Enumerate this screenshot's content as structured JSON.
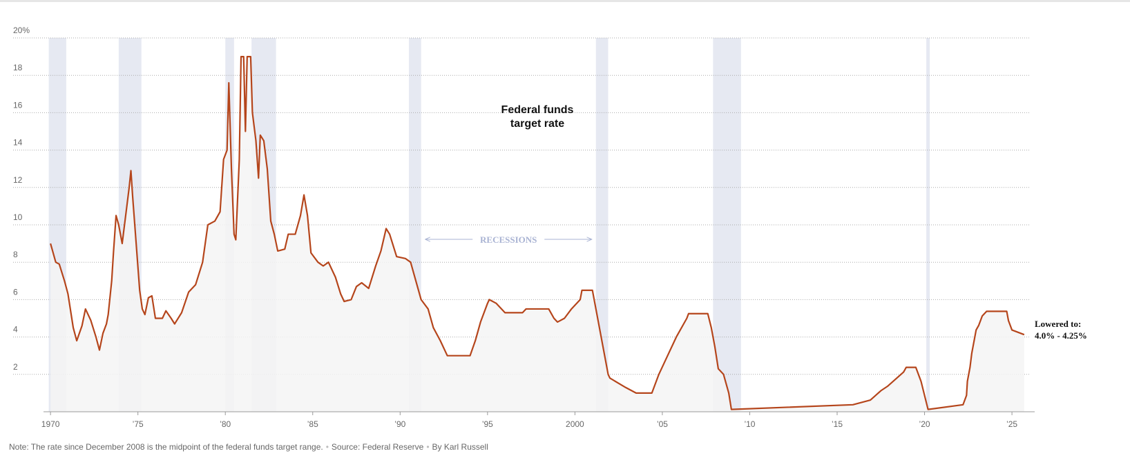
{
  "chart_data": {
    "type": "line",
    "title": "Federal funds target rate",
    "end_annotation": [
      "Lowered to:",
      "4.0% - 4.25%"
    ],
    "recession_label": "RECESSIONS",
    "note": "Note: The rate since December 2008 is the midpoint of the federal funds target range.",
    "source": "Source: Federal Reserve",
    "byline": "By Karl Russell",
    "color": "#b5451b",
    "area_color": "#f4f4f4",
    "recession_color": "#e6e9f2",
    "grid": true,
    "xlim": [
      1969.6,
      2026.3
    ],
    "ylim": [
      0,
      20
    ],
    "yticks": [
      2,
      4,
      6,
      8,
      10,
      12,
      14,
      16,
      18,
      {
        "value": 20,
        "label": "20%"
      }
    ],
    "xticks": [
      {
        "value": 1970,
        "label": "1970"
      },
      {
        "value": 1975,
        "label": "’75"
      },
      {
        "value": 1980,
        "label": "’80"
      },
      {
        "value": 1985,
        "label": "’85"
      },
      {
        "value": 1990,
        "label": "’90"
      },
      {
        "value": 1995,
        "label": "’95"
      },
      {
        "value": 2000,
        "label": "2000"
      },
      {
        "value": 2005,
        "label": "’05"
      },
      {
        "value": 2010,
        "label": "’10"
      },
      {
        "value": 2015,
        "label": "’15"
      },
      {
        "value": 2020,
        "label": "’20"
      },
      {
        "value": 2025,
        "label": "’25"
      }
    ],
    "recessions": [
      {
        "start": 1969.9,
        "end": 1970.9
      },
      {
        "start": 1973.9,
        "end": 1975.2
      },
      {
        "start": 1980.0,
        "end": 1980.5
      },
      {
        "start": 1981.5,
        "end": 1982.9
      },
      {
        "start": 1990.5,
        "end": 1991.2
      },
      {
        "start": 2001.2,
        "end": 2001.9
      },
      {
        "start": 2007.9,
        "end": 2009.5
      },
      {
        "start": 2020.1,
        "end": 2020.3
      }
    ],
    "x": [
      1970.0,
      1970.3,
      1970.5,
      1970.8,
      1971.0,
      1971.3,
      1971.5,
      1971.8,
      1972.0,
      1972.3,
      1972.6,
      1972.8,
      1973.0,
      1973.2,
      1973.3,
      1973.5,
      1973.6,
      1973.75,
      1973.9,
      1974.1,
      1974.3,
      1974.5,
      1974.6,
      1974.7,
      1974.9,
      1975.1,
      1975.25,
      1975.4,
      1975.6,
      1975.8,
      1976.0,
      1976.4,
      1976.6,
      1976.9,
      1977.1,
      1977.5,
      1977.9,
      1978.3,
      1978.7,
      1979.0,
      1979.4,
      1979.7,
      1979.9,
      1980.1,
      1980.2,
      1980.35,
      1980.5,
      1980.6,
      1980.8,
      1980.9,
      1981.05,
      1981.15,
      1981.25,
      1981.45,
      1981.55,
      1981.75,
      1981.9,
      1982.0,
      1982.2,
      1982.4,
      1982.6,
      1982.8,
      1983.0,
      1983.4,
      1983.6,
      1984.0,
      1984.3,
      1984.5,
      1984.7,
      1984.9,
      1985.3,
      1985.6,
      1985.9,
      1986.3,
      1986.6,
      1986.8,
      1987.2,
      1987.5,
      1987.8,
      1988.2,
      1988.6,
      1988.9,
      1989.2,
      1989.4,
      1989.8,
      1990.3,
      1990.6,
      1990.9,
      1991.2,
      1991.6,
      1991.9,
      1992.3,
      1992.7,
      1993.0,
      1994.0,
      1994.3,
      1994.6,
      1995.0,
      1995.1,
      1995.5,
      1996.0,
      1997.0,
      1997.2,
      1998.5,
      1998.8,
      1999.0,
      1999.4,
      1999.8,
      2000.3,
      2000.4,
      2001.0,
      2001.2,
      2001.5,
      2001.7,
      2001.9,
      2002.0,
      2002.9,
      2003.5,
      2004.4,
      2004.8,
      2005.3,
      2005.8,
      2006.4,
      2006.5,
      2007.6,
      2007.8,
      2008.0,
      2008.2,
      2008.5,
      2008.8,
      2008.95,
      2015.9,
      2016.9,
      2017.2,
      2017.5,
      2017.9,
      2018.2,
      2018.5,
      2018.8,
      2018.95,
      2019.5,
      2019.6,
      2019.7,
      2019.8,
      2020.2,
      2022.2,
      2022.4,
      2022.45,
      2022.6,
      2022.7,
      2022.85,
      2022.95,
      2023.1,
      2023.2,
      2023.3,
      2023.55,
      2024.7,
      2024.8,
      2024.9,
      2025.0,
      2025.7
    ],
    "values": [
      9.0,
      8.0,
      7.9,
      7.0,
      6.3,
      4.5,
      3.8,
      4.6,
      5.5,
      4.9,
      4.0,
      3.3,
      4.2,
      4.7,
      5.2,
      7.0,
      8.5,
      10.5,
      10.0,
      9.0,
      10.5,
      12.0,
      12.9,
      11.5,
      9.0,
      6.5,
      5.5,
      5.2,
      6.1,
      6.2,
      5.0,
      5.0,
      5.4,
      5.0,
      4.7,
      5.3,
      6.4,
      6.8,
      8.0,
      10.0,
      10.2,
      10.7,
      13.5,
      14.0,
      17.6,
      13.0,
      9.5,
      9.2,
      13.5,
      19.0,
      19.0,
      15.0,
      19.0,
      19.0,
      16.0,
      14.5,
      12.5,
      14.8,
      14.5,
      13.0,
      10.2,
      9.5,
      8.6,
      8.7,
      9.5,
      9.5,
      10.5,
      11.6,
      10.5,
      8.5,
      8.0,
      7.8,
      8.0,
      7.2,
      6.3,
      5.9,
      6.0,
      6.7,
      6.9,
      6.6,
      7.8,
      8.6,
      9.8,
      9.5,
      8.3,
      8.2,
      8.0,
      7.0,
      6.0,
      5.5,
      4.5,
      3.8,
      3.0,
      3.0,
      3.0,
      3.8,
      4.8,
      5.8,
      6.0,
      5.8,
      5.3,
      5.3,
      5.5,
      5.5,
      5.0,
      4.8,
      5.0,
      5.5,
      6.0,
      6.5,
      6.5,
      5.5,
      4.0,
      3.0,
      2.0,
      1.8,
      1.3,
      1.0,
      1.0,
      2.0,
      3.0,
      4.0,
      5.0,
      5.25,
      5.25,
      4.5,
      3.5,
      2.3,
      2.0,
      1.0,
      0.125,
      0.375,
      0.625,
      0.875,
      1.125,
      1.375,
      1.625,
      1.875,
      2.125,
      2.375,
      2.375,
      2.125,
      1.875,
      1.625,
      0.125,
      0.375,
      0.875,
      1.625,
      2.375,
      3.125,
      3.875,
      4.375,
      4.625,
      4.875,
      5.125,
      5.375,
      5.375,
      4.875,
      4.625,
      4.375,
      4.125
    ]
  }
}
